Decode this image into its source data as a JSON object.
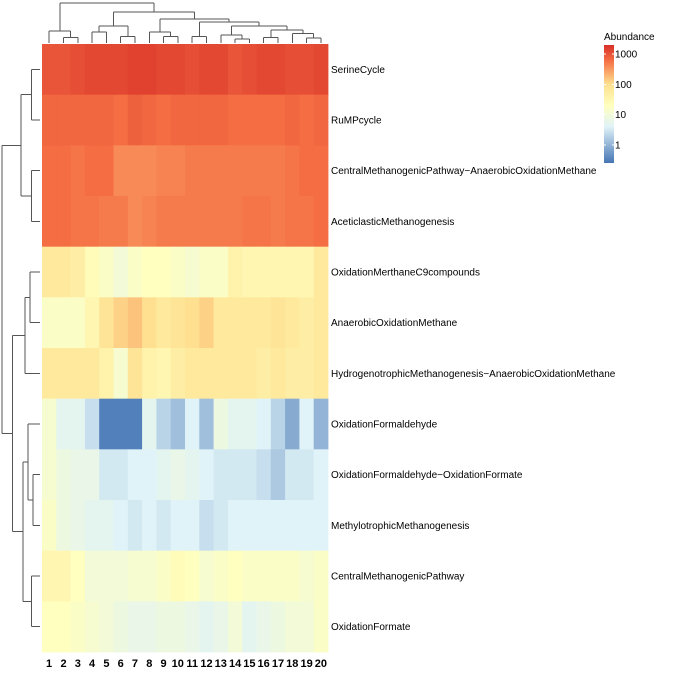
{
  "chart_data": {
    "type": "heatmap",
    "title": "",
    "xlabel": "",
    "ylabel": "",
    "value_scale": "log10",
    "color_scale": {
      "colors": [
        "#4575b4",
        "#e0f3f8",
        "#ffffbf",
        "#fee090",
        "#f46d43",
        "#d73027"
      ],
      "stops_log10": [
        -0.6,
        0.6,
        1.3,
        2.0,
        2.8,
        3.3
      ]
    },
    "legend": {
      "title": "Abundance",
      "position": "top-right",
      "ticks": [
        {
          "label": "1000",
          "value": 1000
        },
        {
          "label": "100",
          "value": 100
        },
        {
          "label": "10",
          "value": 10
        },
        {
          "label": "1",
          "value": 1
        }
      ]
    },
    "columns": [
      "1",
      "2",
      "3",
      "4",
      "5",
      "6",
      "7",
      "8",
      "9",
      "10",
      "11",
      "12",
      "13",
      "14",
      "15",
      "16",
      "17",
      "18",
      "19",
      "20"
    ],
    "rows": [
      "SerineCycle",
      "RuMPcycle",
      "CentralMethanogenicPathway−AnaerobicOxidationMethane",
      "AceticlasticMethanogenesis",
      "OxidationMerthaneC9compounds",
      "AnaerobicOxidationMethane",
      "HydrogenotrophicMethanogenesis−AnaerobicOxidationMethane",
      "OxidationFormaldehyde",
      "OxidationFormaldehyde−OxidationFormate",
      "MethylotrophicMethanogenesis",
      "CentralMethanogenicPathway",
      "OxidationFormate"
    ],
    "values_log10": [
      [
        3.0,
        3.0,
        3.05,
        3.1,
        3.1,
        3.1,
        3.15,
        3.15,
        3.1,
        3.1,
        3.05,
        3.1,
        3.1,
        3.0,
        3.05,
        3.1,
        3.1,
        3.05,
        3.05,
        3.1
      ],
      [
        2.85,
        2.85,
        2.85,
        2.85,
        2.85,
        2.8,
        2.9,
        2.85,
        2.8,
        2.85,
        2.85,
        2.85,
        2.85,
        2.8,
        2.8,
        2.8,
        2.8,
        2.85,
        2.8,
        2.85
      ],
      [
        2.8,
        2.8,
        2.75,
        2.8,
        2.8,
        2.6,
        2.6,
        2.6,
        2.65,
        2.65,
        2.7,
        2.7,
        2.7,
        2.7,
        2.7,
        2.7,
        2.7,
        2.75,
        2.8,
        2.8
      ],
      [
        2.8,
        2.8,
        2.75,
        2.75,
        2.7,
        2.7,
        2.6,
        2.65,
        2.7,
        2.7,
        2.7,
        2.7,
        2.7,
        2.7,
        2.75,
        2.75,
        2.7,
        2.75,
        2.75,
        2.8
      ],
      [
        1.8,
        1.8,
        1.7,
        1.4,
        1.2,
        1.0,
        1.2,
        1.3,
        1.3,
        1.2,
        1.1,
        1.2,
        1.2,
        1.6,
        1.5,
        1.5,
        1.5,
        1.5,
        1.5,
        1.8
      ],
      [
        1.2,
        1.2,
        1.2,
        1.5,
        1.9,
        2.1,
        2.2,
        2.0,
        1.8,
        1.9,
        2.0,
        2.1,
        1.8,
        1.8,
        1.8,
        1.8,
        1.9,
        1.8,
        1.7,
        1.8
      ],
      [
        1.8,
        1.8,
        1.8,
        1.8,
        1.6,
        1.1,
        1.9,
        1.6,
        1.5,
        1.7,
        1.8,
        1.8,
        1.8,
        1.8,
        1.8,
        1.7,
        1.8,
        1.7,
        1.7,
        1.8
      ],
      [
        1.1,
        0.7,
        0.7,
        0.4,
        -0.5,
        -0.5,
        -0.5,
        0.7,
        0.3,
        0.1,
        0.6,
        0.1,
        0.9,
        0.7,
        0.7,
        0.6,
        0.3,
        -0.1,
        0.6,
        0.0
      ],
      [
        1.1,
        0.9,
        0.8,
        0.8,
        0.5,
        0.5,
        0.6,
        0.6,
        0.7,
        0.8,
        0.7,
        0.6,
        0.5,
        0.5,
        0.5,
        0.4,
        0.2,
        0.5,
        0.5,
        0.6
      ],
      [
        1.2,
        0.9,
        0.8,
        0.7,
        0.7,
        0.6,
        0.5,
        0.6,
        0.5,
        0.6,
        0.6,
        0.4,
        0.5,
        0.6,
        0.6,
        0.6,
        0.6,
        0.6,
        0.6,
        0.6
      ],
      [
        1.5,
        1.5,
        1.3,
        1.0,
        1.0,
        1.0,
        1.1,
        1.1,
        1.2,
        1.4,
        1.3,
        1.1,
        1.2,
        1.3,
        1.2,
        1.2,
        1.2,
        1.2,
        1.1,
        1.2
      ],
      [
        1.3,
        1.3,
        1.2,
        1.1,
        1.0,
        0.9,
        0.8,
        0.8,
        0.9,
        0.9,
        0.8,
        0.7,
        0.8,
        1.0,
        0.7,
        0.8,
        0.9,
        1.0,
        1.0,
        1.2
      ]
    ],
    "row_dendrogram": {
      "nodes": [
        {
          "id": "a",
          "children": [
            "r0",
            "r1"
          ],
          "height": 0.22
        },
        {
          "id": "b",
          "children": [
            "r2",
            "r3"
          ],
          "height": 0.22
        },
        {
          "id": "c",
          "children": [
            "a",
            "b"
          ],
          "height": 0.5
        },
        {
          "id": "d",
          "children": [
            "r4",
            "r5"
          ],
          "height": 0.26
        },
        {
          "id": "e",
          "children": [
            "d",
            "r6"
          ],
          "height": 0.4
        },
        {
          "id": "f",
          "children": [
            "r8",
            "r9"
          ],
          "height": 0.18
        },
        {
          "id": "g",
          "children": [
            "r7",
            "f"
          ],
          "height": 0.32
        },
        {
          "id": "h",
          "children": [
            "r10",
            "r11"
          ],
          "height": 0.22
        },
        {
          "id": "i",
          "children": [
            "g",
            "h"
          ],
          "height": 0.45
        },
        {
          "id": "j",
          "children": [
            "e",
            "i"
          ],
          "height": 0.72
        },
        {
          "id": "root",
          "children": [
            "c",
            "j"
          ],
          "height": 1.0
        }
      ]
    },
    "col_dendrogram": {
      "nodes": [
        {
          "id": "A",
          "children": [
            "c1",
            "c2"
          ],
          "height": 0.14
        },
        {
          "id": "B",
          "children": [
            "c0",
            "A"
          ],
          "height": 0.3
        },
        {
          "id": "C",
          "children": [
            "c5",
            "c6"
          ],
          "height": 0.16
        },
        {
          "id": "D",
          "children": [
            "c3",
            "c4"
          ],
          "height": 0.28
        },
        {
          "id": "E",
          "children": [
            "D",
            "C"
          ],
          "height": 0.42
        },
        {
          "id": "F",
          "children": [
            "c8",
            "c9"
          ],
          "height": 0.16
        },
        {
          "id": "G",
          "children": [
            "c7",
            "F"
          ],
          "height": 0.28
        },
        {
          "id": "H",
          "children": [
            "c10",
            "c11"
          ],
          "height": 0.16
        },
        {
          "id": "I",
          "children": [
            "c13",
            "c14"
          ],
          "height": 0.1
        },
        {
          "id": "J",
          "children": [
            "c12",
            "I"
          ],
          "height": 0.2
        },
        {
          "id": "K",
          "children": [
            "c15",
            "c16"
          ],
          "height": 0.14
        },
        {
          "id": "L",
          "children": [
            "c18",
            "c19"
          ],
          "height": 0.12
        },
        {
          "id": "M",
          "children": [
            "c17",
            "L"
          ],
          "height": 0.24
        },
        {
          "id": "N",
          "children": [
            "K",
            "M"
          ],
          "height": 0.32
        },
        {
          "id": "O",
          "children": [
            "J",
            "N"
          ],
          "height": 0.42
        },
        {
          "id": "P",
          "children": [
            "H",
            "O"
          ],
          "height": 0.52
        },
        {
          "id": "Q",
          "children": [
            "G",
            "P"
          ],
          "height": 0.6
        },
        {
          "id": "R",
          "children": [
            "E",
            "Q"
          ],
          "height": 0.78
        },
        {
          "id": "root",
          "children": [
            "B",
            "R"
          ],
          "height": 1.0
        }
      ]
    }
  }
}
